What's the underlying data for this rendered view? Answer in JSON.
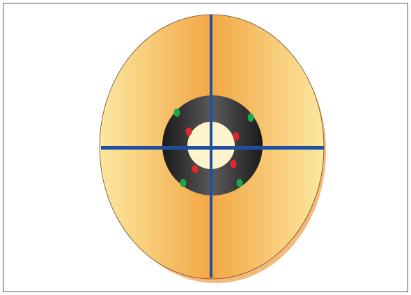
{
  "diagram": {
    "colors": {
      "frame_border": "#555555",
      "background": "#ffffff",
      "outer_ellipse_edge": "#fbe8a0",
      "outer_ellipse_mid": "#f3a745",
      "outer_ellipse_shadow": "#f5b97a",
      "outer_ellipse_stroke": "#6b4a2a",
      "dark_ring_edge": "#1a1a1a",
      "dark_ring_mid": "#5a5a5a",
      "inner_core": "#fdf3cc",
      "crosshair": "#1f4fa3",
      "green_dot": "#1aa74a",
      "red_dot": "#e3262b"
    },
    "dots": {
      "green": [
        {
          "name": "green-dot-top-left"
        },
        {
          "name": "green-dot-top-right"
        },
        {
          "name": "green-dot-bottom-left"
        },
        {
          "name": "green-dot-bottom-right"
        }
      ],
      "red": [
        {
          "name": "red-dot-top-left"
        },
        {
          "name": "red-dot-top-right"
        },
        {
          "name": "red-dot-bottom-left"
        },
        {
          "name": "red-dot-bottom-right"
        }
      ]
    }
  }
}
